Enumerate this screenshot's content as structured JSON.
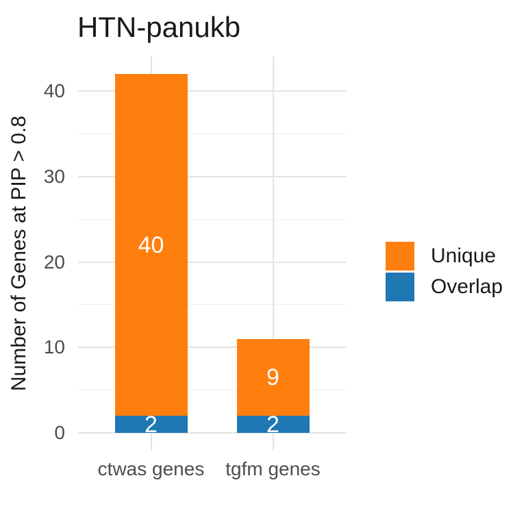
{
  "title": "HTN-panukb",
  "chart_data": {
    "type": "bar",
    "stacked": true,
    "title": "HTN-panukb",
    "xlabel": "",
    "ylabel": "Number of Genes at PIP > 0.8",
    "categories": [
      "ctwas genes",
      "tgfm genes"
    ],
    "series": [
      {
        "name": "Overlap",
        "color": "#1F77B4",
        "values": [
          2,
          2
        ]
      },
      {
        "name": "Unique",
        "color": "#FF7F0E",
        "values": [
          40,
          9
        ]
      }
    ],
    "totals": [
      42,
      11
    ],
    "bar_value_labels": {
      "ctwas genes": {
        "Unique": 40,
        "Overlap": 2
      },
      "tgfm genes": {
        "Unique": 9,
        "Overlap": 2
      }
    },
    "ylim": [
      0,
      44
    ],
    "yticks": [
      0,
      10,
      20,
      30,
      40
    ],
    "yticks_minor": [
      5,
      15,
      25,
      35
    ],
    "grid": true,
    "legend": {
      "position": "right",
      "entries": [
        {
          "label": "Unique",
          "color": "#FF7F0E"
        },
        {
          "label": "Overlap",
          "color": "#1F77B4"
        }
      ]
    }
  },
  "colors": {
    "background": "#FFFFFF",
    "grid_major": "#E3E3E3",
    "grid_minor": "#EFEFEF",
    "axis_text": "#4D4D4D",
    "title_text": "#191919",
    "bar_label_text": "#FFFFFF"
  }
}
